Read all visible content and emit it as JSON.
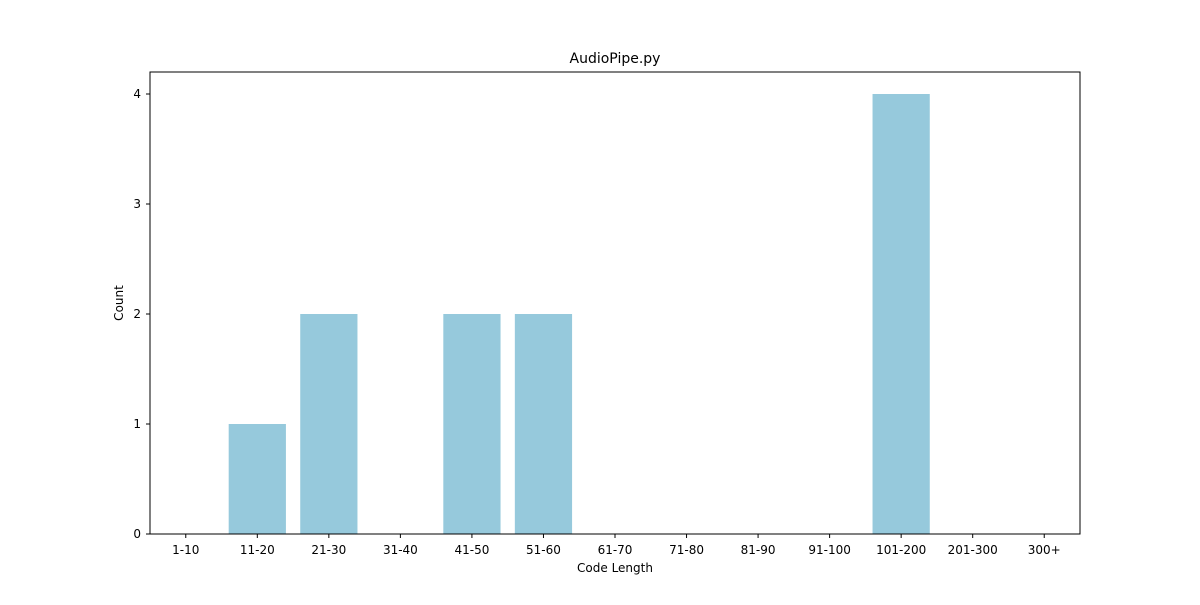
{
  "chart_data": {
    "type": "bar",
    "title": "AudioPipe.py",
    "xlabel": "Code Length",
    "ylabel": "Count",
    "categories": [
      "1-10",
      "11-20",
      "21-30",
      "31-40",
      "41-50",
      "51-60",
      "61-70",
      "71-80",
      "81-90",
      "91-100",
      "101-200",
      "201-300",
      "300+"
    ],
    "values": [
      0,
      1,
      2,
      0,
      2,
      2,
      0,
      0,
      0,
      0,
      4,
      0,
      0
    ],
    "ylim": [
      0,
      4.2
    ],
    "yticks": [
      0,
      1,
      2,
      3,
      4
    ],
    "grid": false,
    "bar_color": "#96c9dc"
  }
}
